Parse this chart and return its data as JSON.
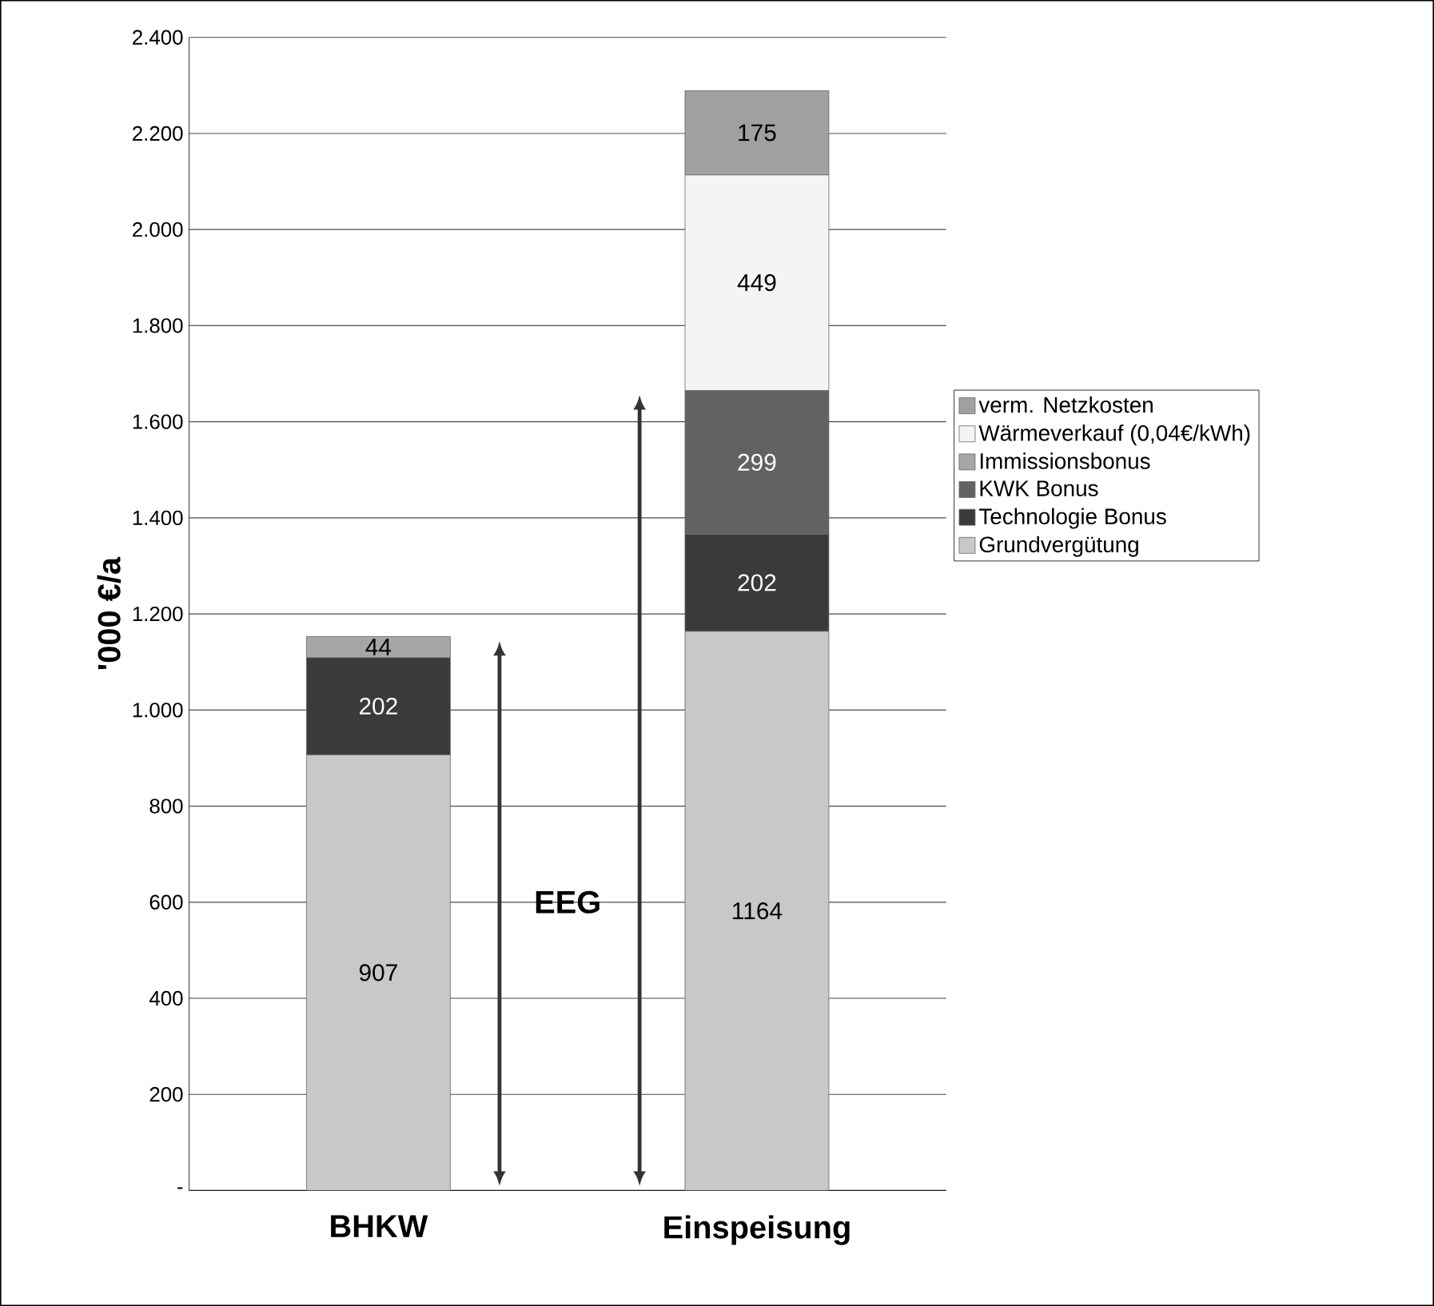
{
  "chart_data": {
    "type": "bar",
    "stacked": true,
    "ylabel": "'000 €/a",
    "categories": [
      "BHKW",
      "Einspeisung"
    ],
    "series": [
      {
        "name": "Grundvergütung",
        "color": "#c8c8c8",
        "values": [
          907,
          1164
        ]
      },
      {
        "name": "Technologie Bonus",
        "color": "#3a3a3a",
        "values": [
          202,
          202
        ]
      },
      {
        "name": "KWK Bonus",
        "color": "#626262",
        "values": [
          null,
          299
        ]
      },
      {
        "name": "Immissionsbonus",
        "color": "#a6a6a6",
        "values": [
          44,
          null
        ]
      },
      {
        "name": "Wärmeverkauf (0,04€/kWh)",
        "color": "#f4f4f4",
        "values": [
          null,
          449
        ]
      },
      {
        "name": "verm. Netzkosten",
        "color": "#a0a0a0",
        "values": [
          null,
          175
        ]
      }
    ],
    "ylim": [
      0,
      2400
    ],
    "yticks": [
      {
        "value": 0,
        "label": "-"
      },
      {
        "value": 200,
        "label": "200"
      },
      {
        "value": 400,
        "label": "400"
      },
      {
        "value": 600,
        "label": "600"
      },
      {
        "value": 800,
        "label": "800"
      },
      {
        "value": 1000,
        "label": "1.000"
      },
      {
        "value": 1200,
        "label": "1.200"
      },
      {
        "value": 1400,
        "label": "1.400"
      },
      {
        "value": 1600,
        "label": "1.600"
      },
      {
        "value": 1800,
        "label": "1.800"
      },
      {
        "value": 2000,
        "label": "2.000"
      },
      {
        "value": 2200,
        "label": "2.200"
      },
      {
        "value": 2400,
        "label": "2.400"
      }
    ],
    "grid": "y",
    "legend": "right",
    "data_labels": true,
    "annotations": [
      "EEG"
    ]
  }
}
